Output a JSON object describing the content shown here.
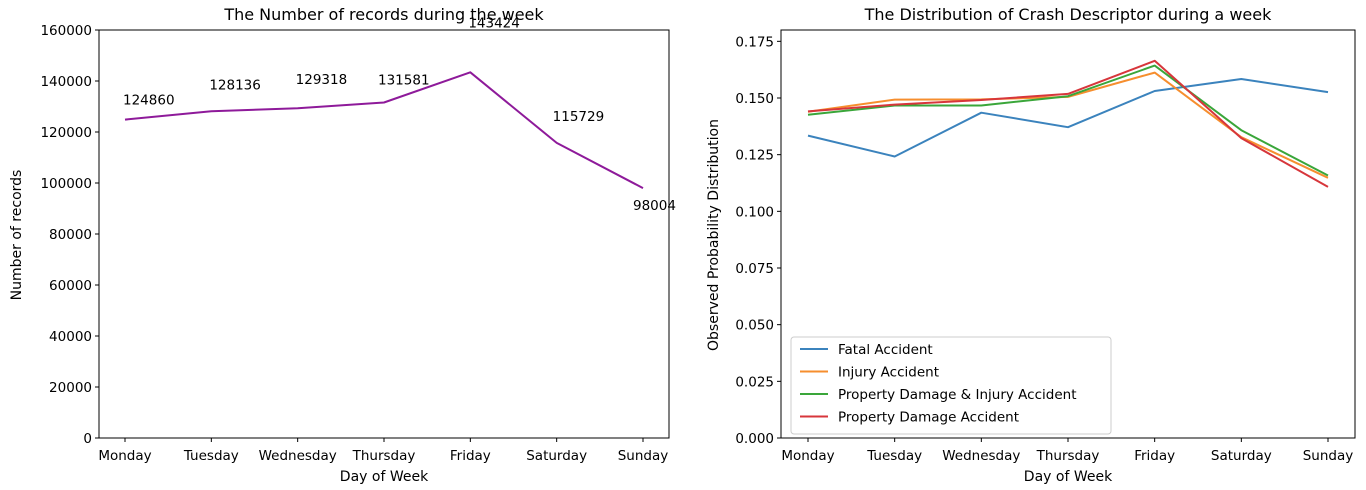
{
  "chart_data": [
    {
      "type": "line",
      "title": "The Number of records during the week",
      "xlabel": "Day of Week",
      "ylabel": "Number of records",
      "categories": [
        "Monday",
        "Tuesday",
        "Wednesday",
        "Thursday",
        "Friday",
        "Saturday",
        "Sunday"
      ],
      "series": [
        {
          "values": [
            124860,
            128136,
            129318,
            131581,
            143424,
            115729,
            98004
          ],
          "color": "#8e1a9a"
        }
      ],
      "data_labels": [
        "124860",
        "128136",
        "129318",
        "131581",
        "143424",
        "115729",
        "98004"
      ],
      "ylim": [
        0,
        160000
      ],
      "yticks": [
        0,
        20000,
        40000,
        60000,
        80000,
        100000,
        120000,
        140000,
        160000
      ],
      "ytick_labels": [
        "0",
        "20000",
        "40000",
        "60000",
        "80000",
        "100000",
        "120000",
        "140000",
        "160000"
      ],
      "grid": false
    },
    {
      "type": "line",
      "title": "The Distribution of Crash Descriptor during a week",
      "xlabel": "Day of Week",
      "ylabel": "Observed Probability Distribution",
      "categories": [
        "Monday",
        "Tuesday",
        "Wednesday",
        "Thursday",
        "Friday",
        "Saturday",
        "Sunday"
      ],
      "series": [
        {
          "name": "Fatal Accident",
          "values": [
            0.1334,
            0.1242,
            0.1435,
            0.1371,
            0.1531,
            0.1584,
            0.1526
          ],
          "color": "#3b83bd"
        },
        {
          "name": "Injury Accident",
          "values": [
            0.1439,
            0.1493,
            0.1494,
            0.1505,
            0.1612,
            0.1327,
            0.1148
          ],
          "color": "#f68e2e"
        },
        {
          "name": "Property Damage & Injury Accident",
          "values": [
            0.1426,
            0.1467,
            0.1467,
            0.1508,
            0.1643,
            0.1358,
            0.1158
          ],
          "color": "#3aa63a"
        },
        {
          "name": "Property Damage Accident",
          "values": [
            0.1441,
            0.1471,
            0.1491,
            0.1518,
            0.1664,
            0.1323,
            0.1108
          ],
          "color": "#d7363b"
        }
      ],
      "ylim": [
        0,
        0.18
      ],
      "yticks": [
        0,
        0.025,
        0.05,
        0.075,
        0.1,
        0.125,
        0.15,
        0.175
      ],
      "ytick_labels": [
        "0.000",
        "0.025",
        "0.050",
        "0.075",
        "0.100",
        "0.125",
        "0.150",
        "0.175"
      ],
      "legend_placement": "lower-left",
      "grid": false
    }
  ]
}
